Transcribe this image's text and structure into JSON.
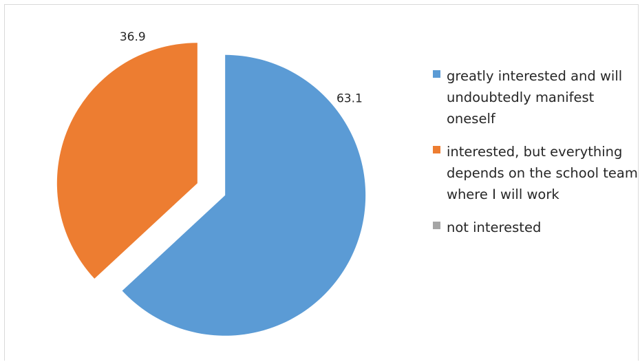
{
  "chart_data": {
    "type": "pie",
    "categories": [
      "greatly interested and will undoubtedly manifest oneself",
      "interested, but everything depends on the school team where I will work",
      "not interested"
    ],
    "values": [
      63.1,
      36.9,
      0
    ],
    "data_labels": [
      "63.1",
      "36.9",
      ""
    ],
    "colors": [
      "#5b9bd5",
      "#ed7d31",
      "#a5a5a5"
    ],
    "exploded": true,
    "legend_position": "right"
  },
  "legend": {
    "items": [
      {
        "label": "greatly interested and will undoubtedly manifest oneself",
        "color": "#5b9bd5"
      },
      {
        "label": "interested, but everything depends on the school team where I will work",
        "color": "#ed7d31"
      },
      {
        "label": "not interested",
        "color": "#a5a5a5"
      }
    ]
  }
}
